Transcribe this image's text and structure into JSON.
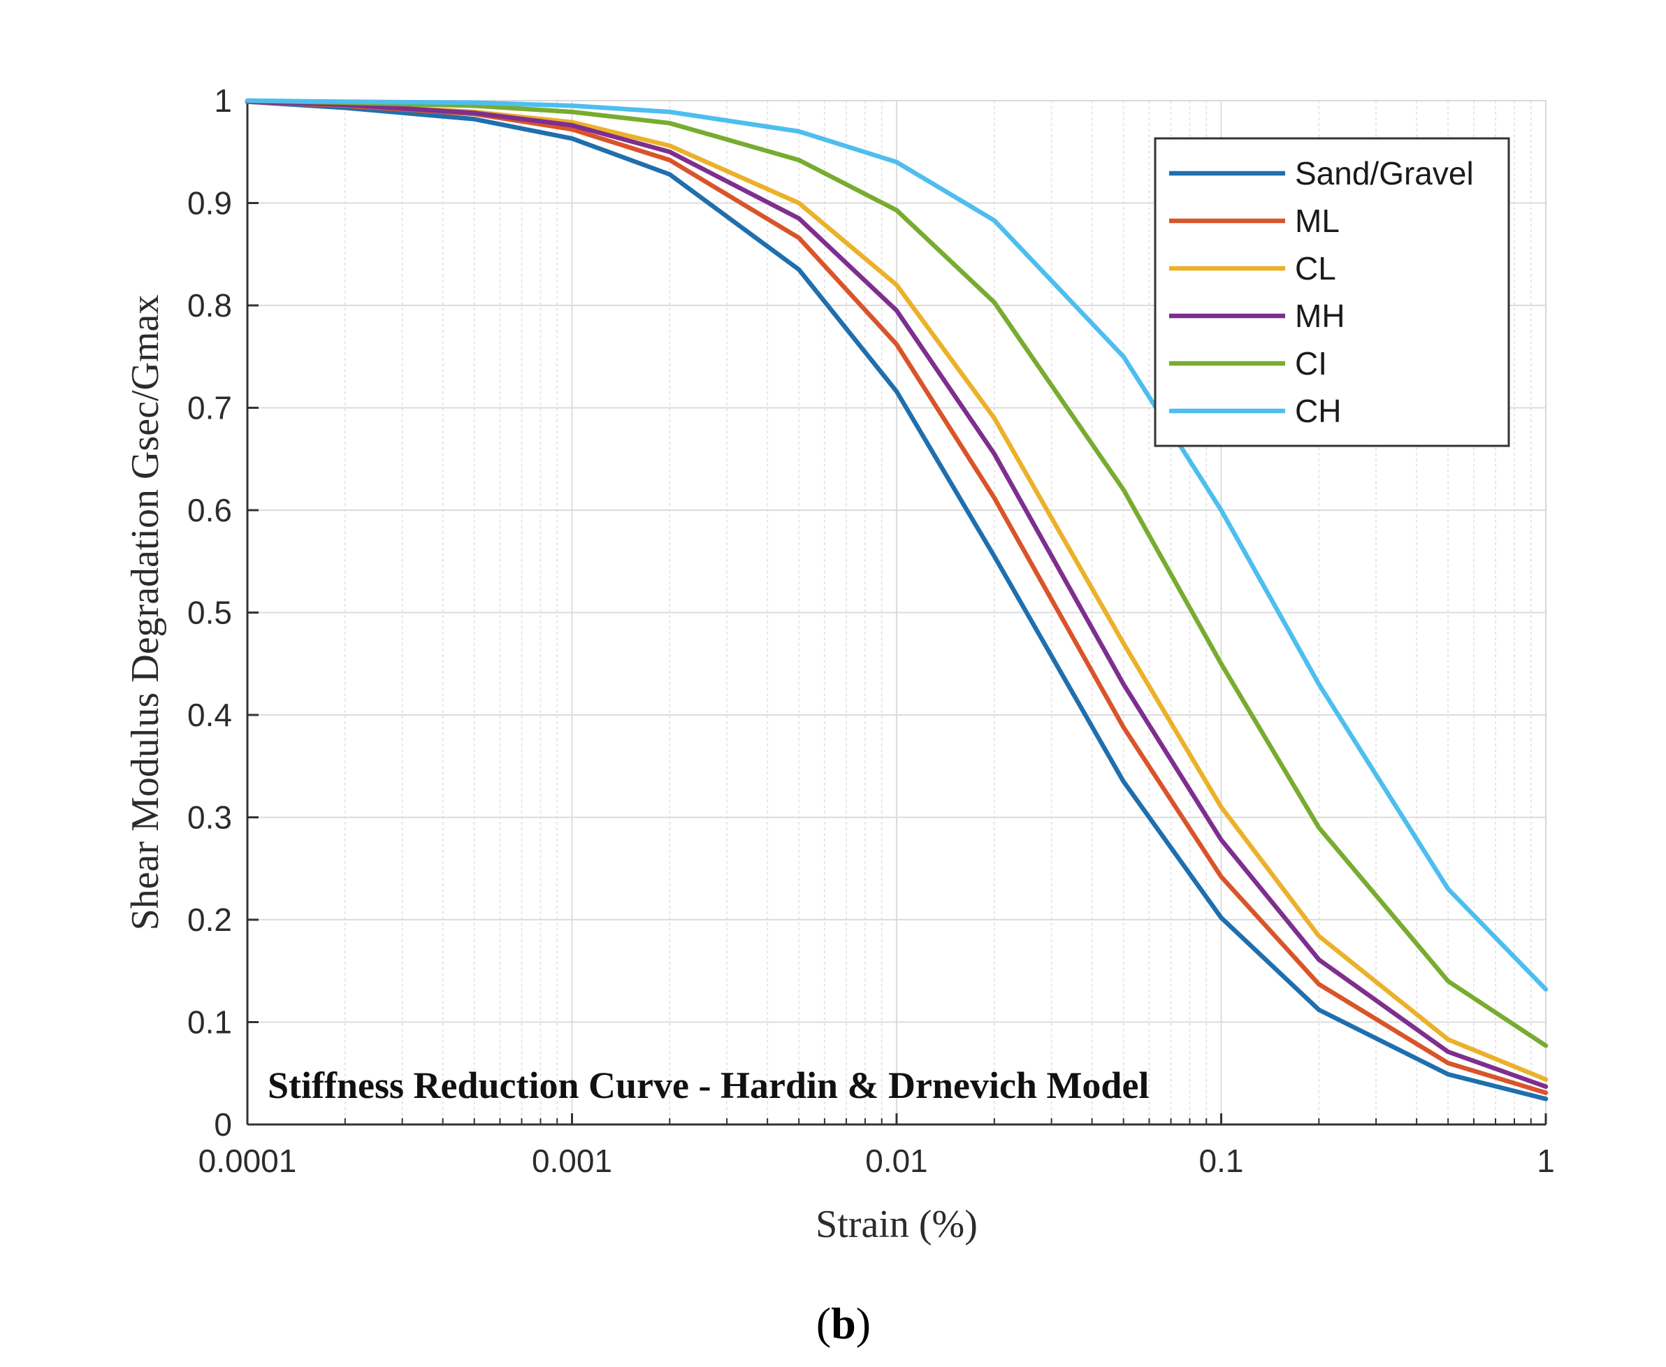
{
  "chart_data": {
    "type": "line",
    "x_scale": "log",
    "annotation": "Stiffness Reduction Curve - Hardin & Drnevich Model",
    "xlabel": "Strain (%)",
    "ylabel": "Shear Modulus Degradation Gsec/Gmax",
    "xlim": [
      0.0001,
      1
    ],
    "ylim": [
      0,
      1
    ],
    "grid": true,
    "legend_position": "top-right",
    "x_ticks": [
      {
        "value": 0.0001,
        "label": "0.0001"
      },
      {
        "value": 0.001,
        "label": "0.001"
      },
      {
        "value": 0.01,
        "label": "0.01"
      },
      {
        "value": 0.1,
        "label": "0.1"
      },
      {
        "value": 1,
        "label": "1"
      }
    ],
    "y_ticks": [
      {
        "value": 0,
        "label": "0"
      },
      {
        "value": 0.1,
        "label": "0.1"
      },
      {
        "value": 0.2,
        "label": "0.2"
      },
      {
        "value": 0.3,
        "label": "0.3"
      },
      {
        "value": 0.4,
        "label": "0.4"
      },
      {
        "value": 0.5,
        "label": "0.5"
      },
      {
        "value": 0.6,
        "label": "0.6"
      },
      {
        "value": 0.7,
        "label": "0.7"
      },
      {
        "value": 0.8,
        "label": "0.8"
      },
      {
        "value": 0.9,
        "label": "0.9"
      },
      {
        "value": 1,
        "label": "1"
      }
    ],
    "x": [
      0.0001,
      0.0002,
      0.0005,
      0.001,
      0.002,
      0.005,
      0.01,
      0.02,
      0.05,
      0.1,
      0.2,
      0.5,
      1
    ],
    "series": [
      {
        "name": "Sand/Gravel",
        "color": "#1f6fae",
        "values": [
          0.999,
          0.993,
          0.982,
          0.963,
          0.928,
          0.835,
          0.716,
          0.555,
          0.335,
          0.202,
          0.112,
          0.049,
          0.025
        ]
      },
      {
        "name": "ML",
        "color": "#d9542a",
        "values": [
          0.999,
          0.995,
          0.987,
          0.972,
          0.942,
          0.866,
          0.762,
          0.612,
          0.388,
          0.242,
          0.137,
          0.06,
          0.031
        ]
      },
      {
        "name": "CL",
        "color": "#ebb12a",
        "values": [
          0.999,
          0.996,
          0.989,
          0.979,
          0.956,
          0.9,
          0.82,
          0.69,
          0.47,
          0.31,
          0.184,
          0.083,
          0.044
        ]
      },
      {
        "name": "MH",
        "color": "#7e2f8e",
        "values": [
          0.999,
          0.996,
          0.988,
          0.976,
          0.95,
          0.885,
          0.795,
          0.655,
          0.43,
          0.278,
          0.161,
          0.071,
          0.037
        ]
      },
      {
        "name": "CI",
        "color": "#77ac30",
        "values": [
          1.0,
          0.998,
          0.995,
          0.989,
          0.978,
          0.942,
          0.893,
          0.803,
          0.62,
          0.45,
          0.29,
          0.14,
          0.077
        ]
      },
      {
        "name": "CH",
        "color": "#4dbeee",
        "values": [
          1.0,
          0.999,
          0.998,
          0.995,
          0.989,
          0.97,
          0.94,
          0.883,
          0.75,
          0.6,
          0.43,
          0.23,
          0.132
        ]
      }
    ]
  },
  "panel_label": {
    "open": "(",
    "letter": "b",
    "close": ")"
  }
}
